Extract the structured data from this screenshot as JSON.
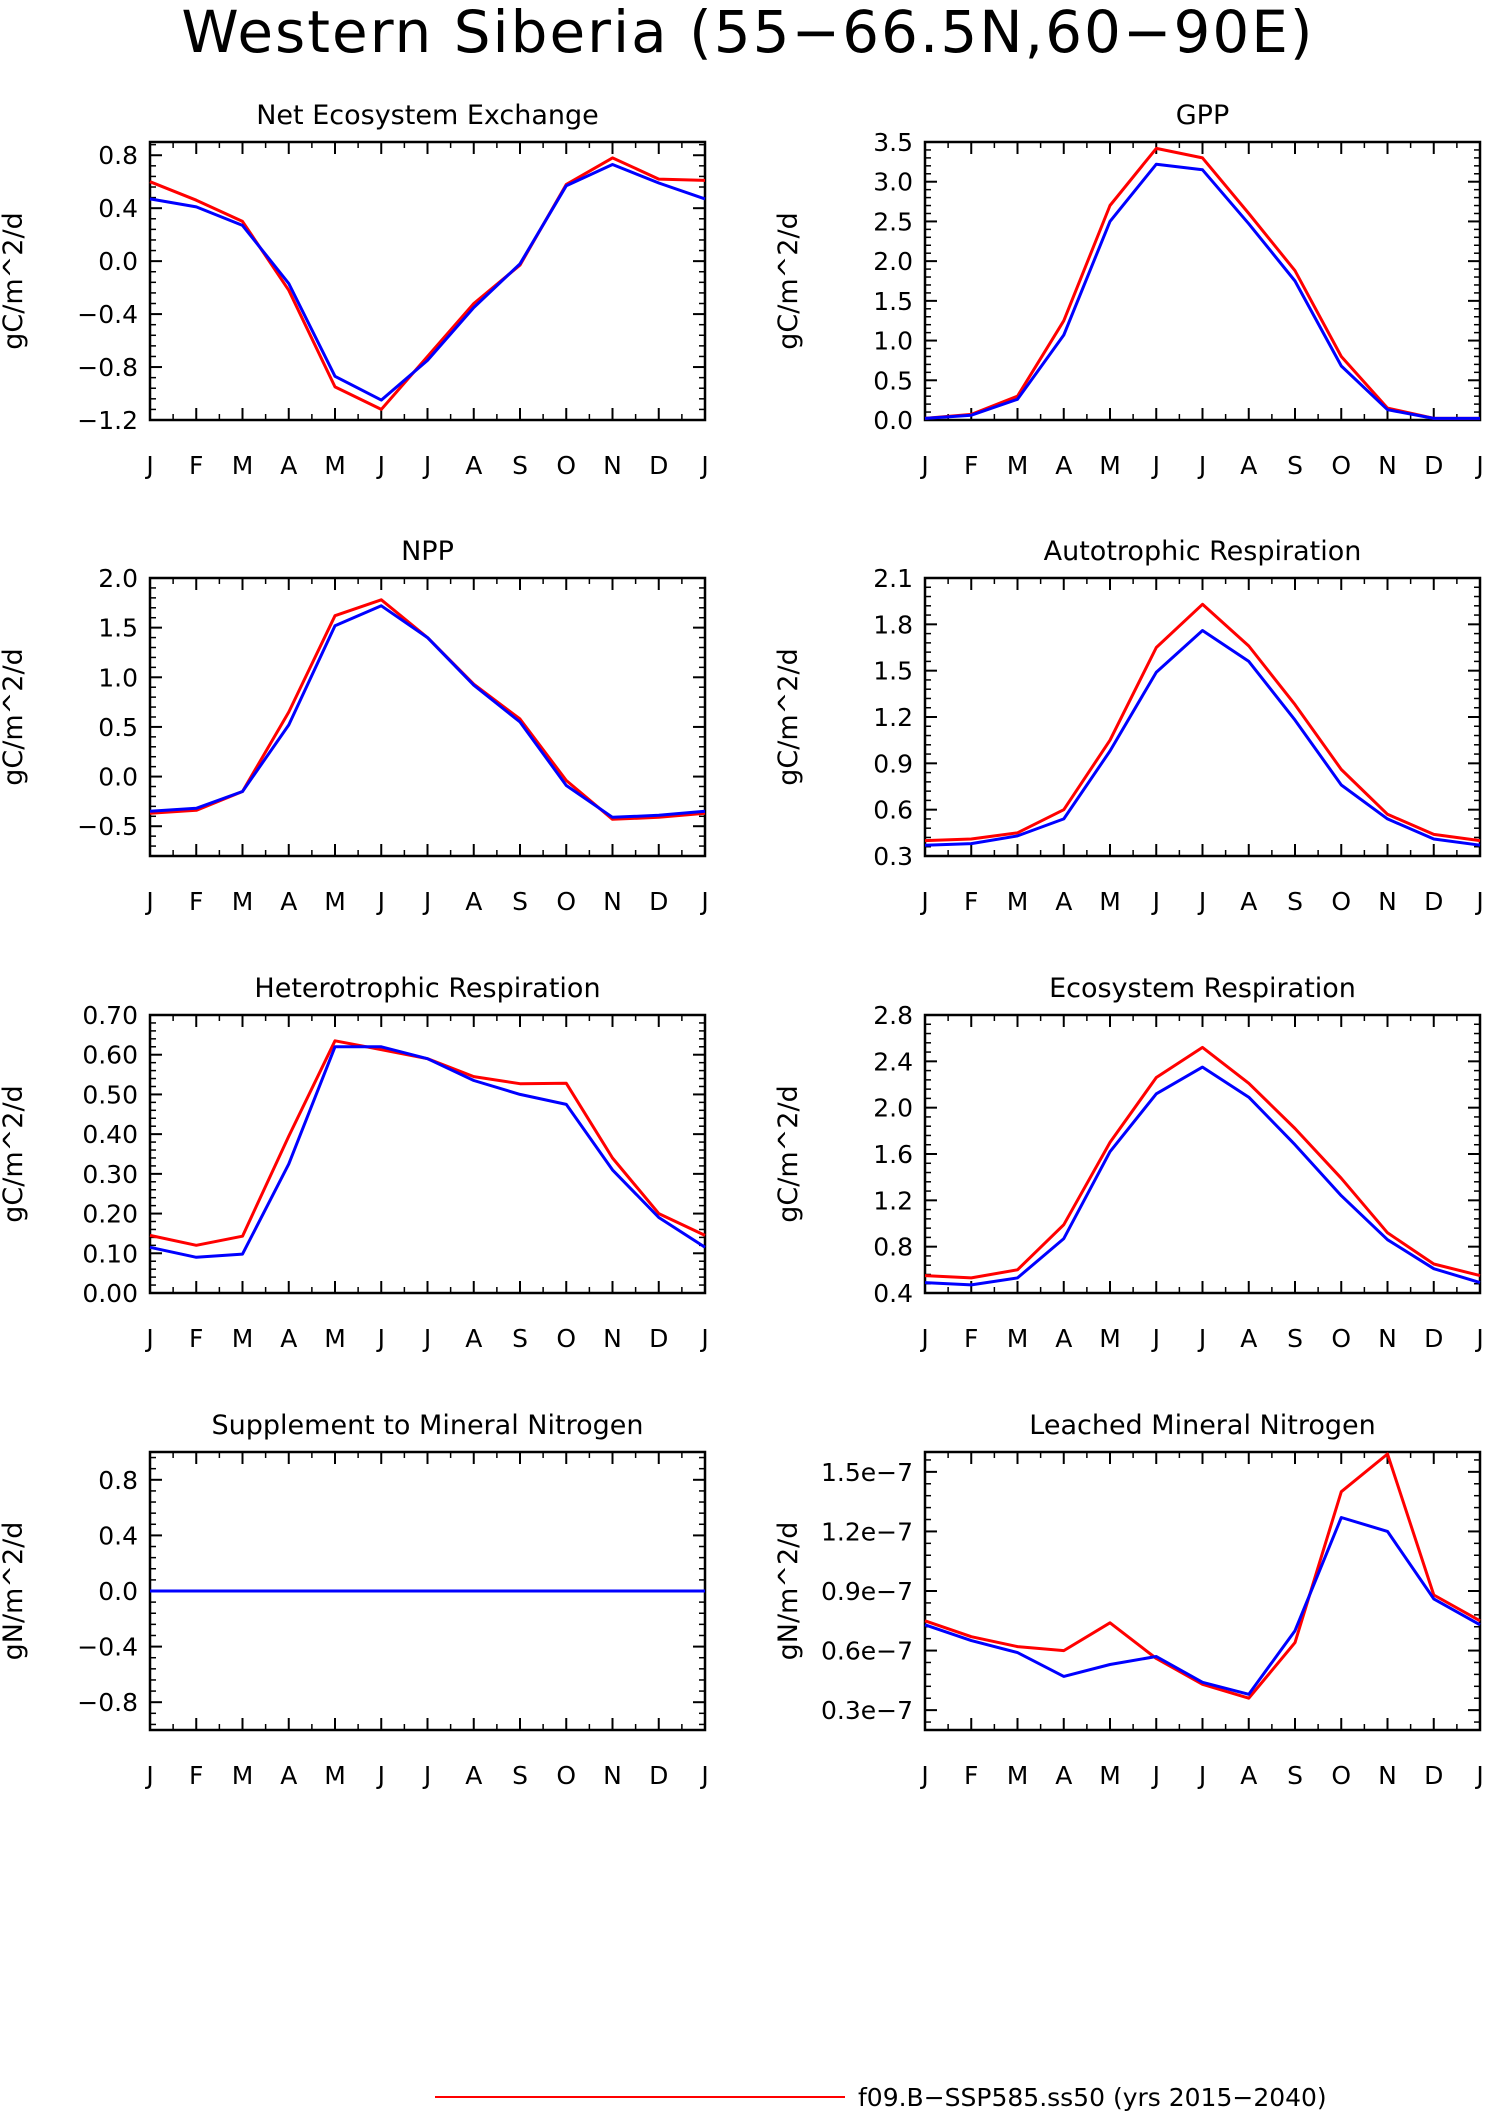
{
  "figure": {
    "title": "Western Siberia (55−66.5N,60−90E)",
    "legend": [
      {
        "label": "f09.B−SSP585.ss50 (yrs 2015−2040)",
        "color": "#ff0000"
      }
    ]
  },
  "colors": {
    "series_a": "#ff0000",
    "series_b": "#0000ff",
    "axis": "#000000"
  },
  "chart_data": [
    {
      "type": "line",
      "title": "Net Ecosystem Exchange",
      "ylabel": "gC/m^2/d",
      "xticks": [
        "J",
        "F",
        "M",
        "A",
        "M",
        "J",
        "J",
        "A",
        "S",
        "O",
        "N",
        "D",
        "J"
      ],
      "ylim": [
        -1.2,
        0.9
      ],
      "yticks": [
        -1.2,
        -0.8,
        -0.4,
        0.0,
        0.4,
        0.8
      ],
      "yticklabels": [
        "−1.2",
        "−0.8",
        "−0.4",
        "0.0",
        "0.4",
        "0.8"
      ],
      "series": [
        {
          "color": "#ff0000",
          "values": [
            0.6,
            0.46,
            0.3,
            -0.22,
            -0.95,
            -1.12,
            -0.72,
            -0.32,
            -0.03,
            0.58,
            0.78,
            0.62,
            0.61
          ]
        },
        {
          "color": "#0000ff",
          "values": [
            0.47,
            0.41,
            0.27,
            -0.17,
            -0.87,
            -1.05,
            -0.75,
            -0.35,
            -0.02,
            0.57,
            0.73,
            0.59,
            0.47
          ]
        }
      ]
    },
    {
      "type": "line",
      "title": "GPP",
      "ylabel": "gC/m^2/d",
      "xticks": [
        "J",
        "F",
        "M",
        "A",
        "M",
        "J",
        "J",
        "A",
        "S",
        "O",
        "N",
        "D",
        "J"
      ],
      "ylim": [
        0.0,
        3.5
      ],
      "yticks": [
        0.0,
        0.5,
        1.0,
        1.5,
        2.0,
        2.5,
        3.0,
        3.5
      ],
      "yticklabels": [
        "0.0",
        "0.5",
        "1.0",
        "1.5",
        "2.0",
        "2.5",
        "3.0",
        "3.5"
      ],
      "series": [
        {
          "color": "#ff0000",
          "values": [
            0.02,
            0.07,
            0.3,
            1.25,
            2.7,
            3.42,
            3.3,
            2.6,
            1.88,
            0.8,
            0.15,
            0.02,
            0.02
          ]
        },
        {
          "color": "#0000ff",
          "values": [
            0.02,
            0.06,
            0.26,
            1.07,
            2.5,
            3.22,
            3.15,
            2.47,
            1.75,
            0.68,
            0.13,
            0.02,
            0.02
          ]
        }
      ]
    },
    {
      "type": "line",
      "title": "NPP",
      "ylabel": "gC/m^2/d",
      "xticks": [
        "J",
        "F",
        "M",
        "A",
        "M",
        "J",
        "J",
        "A",
        "S",
        "O",
        "N",
        "D",
        "J"
      ],
      "ylim": [
        -0.8,
        2.0
      ],
      "yticks": [
        -0.5,
        0.0,
        0.5,
        1.0,
        1.5,
        2.0
      ],
      "yticklabels": [
        "−0.5",
        "0.0",
        "0.5",
        "1.0",
        "1.5",
        "2.0"
      ],
      "series": [
        {
          "color": "#ff0000",
          "values": [
            -0.37,
            -0.34,
            -0.15,
            0.65,
            1.62,
            1.78,
            1.4,
            0.93,
            0.58,
            -0.04,
            -0.43,
            -0.41,
            -0.37
          ]
        },
        {
          "color": "#0000ff",
          "values": [
            -0.35,
            -0.32,
            -0.15,
            0.52,
            1.52,
            1.72,
            1.4,
            0.92,
            0.55,
            -0.09,
            -0.41,
            -0.39,
            -0.35
          ]
        }
      ]
    },
    {
      "type": "line",
      "title": "Autotrophic Respiration",
      "ylabel": "gC/m^2/d",
      "xticks": [
        "J",
        "F",
        "M",
        "A",
        "M",
        "J",
        "J",
        "A",
        "S",
        "O",
        "N",
        "D",
        "J"
      ],
      "ylim": [
        0.3,
        2.1
      ],
      "yticks": [
        0.3,
        0.6,
        0.9,
        1.2,
        1.5,
        1.8,
        2.1
      ],
      "yticklabels": [
        "0.3",
        "0.6",
        "0.9",
        "1.2",
        "1.5",
        "1.8",
        "2.1"
      ],
      "series": [
        {
          "color": "#ff0000",
          "values": [
            0.4,
            0.41,
            0.45,
            0.6,
            1.05,
            1.65,
            1.93,
            1.66,
            1.28,
            0.86,
            0.57,
            0.44,
            0.4
          ]
        },
        {
          "color": "#0000ff",
          "values": [
            0.37,
            0.38,
            0.43,
            0.54,
            0.98,
            1.49,
            1.76,
            1.56,
            1.18,
            0.76,
            0.54,
            0.41,
            0.37
          ]
        }
      ]
    },
    {
      "type": "line",
      "title": "Heterotrophic Respiration",
      "ylabel": "gC/m^2/d",
      "xticks": [
        "J",
        "F",
        "M",
        "A",
        "M",
        "J",
        "J",
        "A",
        "S",
        "O",
        "N",
        "D",
        "J"
      ],
      "ylim": [
        0.0,
        0.7
      ],
      "yticks": [
        0.0,
        0.1,
        0.2,
        0.3,
        0.4,
        0.5,
        0.6,
        0.7
      ],
      "yticklabels": [
        "0.00",
        "0.10",
        "0.20",
        "0.30",
        "0.40",
        "0.50",
        "0.60",
        "0.70"
      ],
      "series": [
        {
          "color": "#ff0000",
          "values": [
            0.145,
            0.12,
            0.143,
            0.395,
            0.635,
            0.613,
            0.59,
            0.545,
            0.527,
            0.528,
            0.34,
            0.2,
            0.145
          ]
        },
        {
          "color": "#0000ff",
          "values": [
            0.115,
            0.09,
            0.098,
            0.325,
            0.62,
            0.62,
            0.59,
            0.535,
            0.5,
            0.475,
            0.31,
            0.19,
            0.115
          ]
        }
      ]
    },
    {
      "type": "line",
      "title": "Ecosystem Respiration",
      "ylabel": "gC/m^2/d",
      "xticks": [
        "J",
        "F",
        "M",
        "A",
        "M",
        "J",
        "J",
        "A",
        "S",
        "O",
        "N",
        "D",
        "J"
      ],
      "ylim": [
        0.4,
        2.8
      ],
      "yticks": [
        0.4,
        0.8,
        1.2,
        1.6,
        2.0,
        2.4,
        2.8
      ],
      "yticklabels": [
        "0.4",
        "0.8",
        "1.2",
        "1.6",
        "2.0",
        "2.4",
        "2.8"
      ],
      "series": [
        {
          "color": "#ff0000",
          "values": [
            0.55,
            0.53,
            0.6,
            0.99,
            1.7,
            2.26,
            2.52,
            2.21,
            1.82,
            1.39,
            0.92,
            0.65,
            0.55
          ]
        },
        {
          "color": "#0000ff",
          "values": [
            0.49,
            0.47,
            0.53,
            0.87,
            1.62,
            2.12,
            2.35,
            2.09,
            1.68,
            1.24,
            0.86,
            0.61,
            0.49
          ]
        }
      ]
    },
    {
      "type": "line",
      "title": "Supplement to Mineral Nitrogen",
      "ylabel": "gN/m^2/d",
      "xticks": [
        "J",
        "F",
        "M",
        "A",
        "M",
        "J",
        "J",
        "A",
        "S",
        "O",
        "N",
        "D",
        "J"
      ],
      "ylim": [
        -1.0,
        1.0
      ],
      "yticks": [
        -0.8,
        -0.4,
        0.0,
        0.4,
        0.8
      ],
      "yticklabels": [
        "−0.8",
        "−0.4",
        "0.0",
        "0.4",
        "0.8"
      ],
      "series": [
        {
          "color": "#ff0000",
          "values": [
            0,
            0,
            0,
            0,
            0,
            0,
            0,
            0,
            0,
            0,
            0,
            0,
            0
          ]
        },
        {
          "color": "#0000ff",
          "values": [
            0,
            0,
            0,
            0,
            0,
            0,
            0,
            0,
            0,
            0,
            0,
            0,
            0
          ]
        }
      ]
    },
    {
      "type": "line",
      "title": "Leached Mineral Nitrogen",
      "ylabel": "gN/m^2/d",
      "xticks": [
        "J",
        "F",
        "M",
        "A",
        "M",
        "J",
        "J",
        "A",
        "S",
        "O",
        "N",
        "D",
        "J"
      ],
      "ylim": [
        2e-08,
        1.6e-07
      ],
      "yticks": [
        3e-08,
        6e-08,
        9e-08,
        1.2e-07,
        1.5e-07
      ],
      "yticklabels": [
        "0.3e−7",
        "0.6e−7",
        "0.9e−7",
        "1.2e−7",
        "1.5e−7"
      ],
      "series": [
        {
          "color": "#ff0000",
          "values": [
            7.5e-08,
            6.7e-08,
            6.2e-08,
            6e-08,
            7.4e-08,
            5.6e-08,
            4.3e-08,
            3.6e-08,
            6.4e-08,
            1.4e-07,
            1.59e-07,
            8.8e-08,
            7.5e-08
          ]
        },
        {
          "color": "#0000ff",
          "values": [
            7.3e-08,
            6.5e-08,
            5.9e-08,
            4.7e-08,
            5.3e-08,
            5.7e-08,
            4.4e-08,
            3.8e-08,
            7e-08,
            1.27e-07,
            1.2e-07,
            8.6e-08,
            7.3e-08
          ]
        }
      ]
    }
  ]
}
